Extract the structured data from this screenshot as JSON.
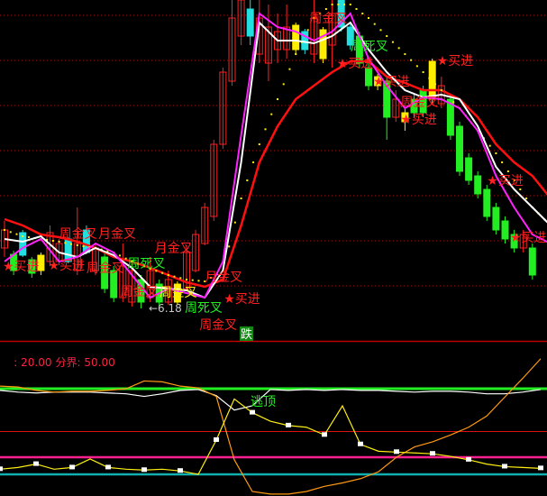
{
  "chart_data": [
    {
      "type": "candlestick",
      "title": "",
      "low_marker": {
        "text": "←6.18",
        "price": 6.18
      },
      "candle_colors": {
        "r": "#ff2020",
        "g": "#22ee22",
        "c": "#22e0e0",
        "y": "#ffee00"
      },
      "candles": [
        [
          6.85,
          7.15,
          6.75,
          7.05,
          "r"
        ],
        [
          6.78,
          6.82,
          6.55,
          6.6,
          "g"
        ],
        [
          7.02,
          7.05,
          6.75,
          6.77,
          "c"
        ],
        [
          6.72,
          6.75,
          6.52,
          6.57,
          "g"
        ],
        [
          6.6,
          6.8,
          6.55,
          6.77,
          "y"
        ],
        [
          6.7,
          7.1,
          6.65,
          7.02,
          "r"
        ],
        [
          6.7,
          6.95,
          6.66,
          6.9,
          "r"
        ],
        [
          6.95,
          6.97,
          6.68,
          6.7,
          "c"
        ],
        [
          6.6,
          7.3,
          6.55,
          6.9,
          "r"
        ],
        [
          7.05,
          7.1,
          6.78,
          6.8,
          "c"
        ],
        [
          6.6,
          6.9,
          6.55,
          6.85,
          "r"
        ],
        [
          6.75,
          6.8,
          6.35,
          6.4,
          "g"
        ],
        [
          6.6,
          6.65,
          6.25,
          6.3,
          "g"
        ],
        [
          6.3,
          6.9,
          6.25,
          6.65,
          "r"
        ],
        [
          6.25,
          6.7,
          6.2,
          6.6,
          "r"
        ],
        [
          6.5,
          6.55,
          6.18,
          6.25,
          "g"
        ],
        [
          6.3,
          6.75,
          6.25,
          6.6,
          "r"
        ],
        [
          6.45,
          6.5,
          6.2,
          6.25,
          "g"
        ],
        [
          6.25,
          6.6,
          6.22,
          6.5,
          "r"
        ],
        [
          6.25,
          6.48,
          6.22,
          6.45,
          "y"
        ],
        [
          6.4,
          6.88,
          6.38,
          6.8,
          "r"
        ],
        [
          6.6,
          7.05,
          6.58,
          7.0,
          "r"
        ],
        [
          6.9,
          7.35,
          6.88,
          7.3,
          "r"
        ],
        [
          7.2,
          8.05,
          7.15,
          8.0,
          "r"
        ],
        [
          8.0,
          8.85,
          7.95,
          8.8,
          "r"
        ],
        [
          8.7,
          9.6,
          8.65,
          9.4,
          "r"
        ],
        [
          9.2,
          9.6,
          9.1,
          9.6,
          "r"
        ],
        [
          9.5,
          9.6,
          9.1,
          9.2,
          "c"
        ],
        [
          9.0,
          9.6,
          8.9,
          9.4,
          "r"
        ],
        [
          8.9,
          9.55,
          8.7,
          9.3,
          "r"
        ],
        [
          9.05,
          9.45,
          8.9,
          9.25,
          "r"
        ],
        [
          9.05,
          9.55,
          8.95,
          9.3,
          "r"
        ],
        [
          9.05,
          9.35,
          9.0,
          9.32,
          "y"
        ],
        [
          9.25,
          9.28,
          9.0,
          9.05,
          "c"
        ],
        [
          9.0,
          9.6,
          8.9,
          9.4,
          "r"
        ],
        [
          8.95,
          9.3,
          8.9,
          9.27,
          "y"
        ],
        [
          9.1,
          9.6,
          8.85,
          9.45,
          "r"
        ],
        [
          9.6,
          9.6,
          9.25,
          9.3,
          "c"
        ],
        [
          9.3,
          9.35,
          9.05,
          9.1,
          "c"
        ],
        [
          9.2,
          9.25,
          8.85,
          8.9,
          "g"
        ],
        [
          8.85,
          8.9,
          8.6,
          8.65,
          "g"
        ],
        [
          8.65,
          8.78,
          8.6,
          8.75,
          "y"
        ],
        [
          8.7,
          8.75,
          8.05,
          8.3,
          "g"
        ],
        [
          8.3,
          8.6,
          8.25,
          8.5,
          "r"
        ],
        [
          8.25,
          8.4,
          8.15,
          8.35,
          "y"
        ],
        [
          8.5,
          8.55,
          8.3,
          8.35,
          "g"
        ],
        [
          8.6,
          8.65,
          8.3,
          8.35,
          "g"
        ],
        [
          8.5,
          8.95,
          8.45,
          8.92,
          "y"
        ],
        [
          8.45,
          8.75,
          8.4,
          8.65,
          "r"
        ],
        [
          8.5,
          8.55,
          8.05,
          8.1,
          "g"
        ],
        [
          8.2,
          8.25,
          7.65,
          7.7,
          "g"
        ],
        [
          7.85,
          7.9,
          7.55,
          7.6,
          "g"
        ],
        [
          7.65,
          7.7,
          7.4,
          7.45,
          "g"
        ],
        [
          7.5,
          7.55,
          7.15,
          7.2,
          "g"
        ],
        [
          7.3,
          7.35,
          7.0,
          7.05,
          "g"
        ],
        [
          7.15,
          7.2,
          6.9,
          6.95,
          "g"
        ],
        [
          7.0,
          7.05,
          6.8,
          6.85,
          "g"
        ],
        [
          6.85,
          7.05,
          6.8,
          7.0,
          "r"
        ],
        [
          6.85,
          6.9,
          6.5,
          6.55,
          "g"
        ]
      ],
      "lines": [
        {
          "color": "#ff1010",
          "style": "solid",
          "values": [
            7.17,
            7.1,
            7.0,
            6.97,
            6.92,
            6.85,
            6.75,
            6.7,
            6.63,
            6.55,
            6.47,
            6.42,
            6.5,
            7.1,
            7.8,
            8.2,
            8.5,
            8.65,
            8.8,
            8.92,
            8.92,
            8.75,
            8.68,
            8.6,
            8.6,
            8.5,
            8.3,
            8.0,
            7.8,
            7.65,
            7.4
          ]
        },
        {
          "color": "#ffee00",
          "style": "dotted",
          "values": [
            7.05,
            6.98,
            6.95,
            6.92,
            6.88,
            6.85,
            6.8,
            6.7,
            6.62,
            6.55,
            6.5,
            6.48,
            6.6,
            7.4,
            8.0,
            8.5,
            9.0,
            9.4,
            9.55,
            9.55,
            9.4,
            9.2,
            9.0,
            8.8,
            8.6,
            8.4,
            8.15,
            7.9,
            7.6,
            7.3,
            7.1
          ]
        },
        {
          "color": "#ffffff",
          "style": "solid",
          "values": [
            6.95,
            6.92,
            6.98,
            6.8,
            6.75,
            6.85,
            6.77,
            6.63,
            6.42,
            6.4,
            6.38,
            6.3,
            6.6,
            7.8,
            9.35,
            9.15,
            9.15,
            9.12,
            9.2,
            9.35,
            9.05,
            8.8,
            8.6,
            8.52,
            8.55,
            8.5,
            8.2,
            7.75,
            7.5,
            7.3,
            7.1
          ]
        },
        {
          "color": "#ff22ff",
          "style": "solid",
          "values": [
            6.7,
            6.85,
            6.95,
            6.7,
            6.75,
            6.9,
            6.8,
            6.55,
            6.3,
            6.4,
            6.35,
            6.3,
            6.7,
            8.1,
            9.45,
            9.3,
            9.25,
            9.15,
            9.25,
            9.45,
            8.95,
            8.65,
            8.4,
            8.52,
            8.5,
            8.4,
            8.15,
            7.65,
            7.3,
            7.0,
            6.9
          ]
        }
      ],
      "annotations": [
        {
          "text": "周金叉",
          "bar": 6,
          "price": 6.96,
          "color": "#ff2020"
        },
        {
          "text": "月金叉",
          "bar": 10,
          "price": 6.96,
          "color": "#ff2020"
        },
        {
          "text": "★买进",
          "bar": -0.5,
          "price": 6.6,
          "color": "#ff2020"
        },
        {
          "text": "★买进",
          "bar": 4.8,
          "price": 6.61,
          "color": "#ff2020"
        },
        {
          "text": "周金叉",
          "bar": 7.5,
          "price": 6.58,
          "color": "#ff2020"
        },
        {
          "text": "月金叉",
          "bar": 16.5,
          "price": 6.8,
          "color": "#ff2020"
        },
        {
          "text": "周死叉",
          "bar": 13.5,
          "price": 6.63,
          "color": "#22ee22"
        },
        {
          "text": "周金叉",
          "bar": 17,
          "price": 6.28,
          "color": "#ffee00"
        },
        {
          "text": "周金叉",
          "bar": 14.5,
          "price": 6.2,
          "color": "#ff2020"
        },
        {
          "text": "周死叉",
          "bar": 19.5,
          "price": 6.14,
          "color": "#22ee22"
        },
        {
          "text": "月金叉",
          "bar": 22,
          "price": 6.48,
          "color": "#ff2020"
        },
        {
          "text": "★买进",
          "bar": 22,
          "price": 6.24,
          "color": "#ff2020"
        },
        {
          "text": "周金叉",
          "bar": 22,
          "price": 6.04,
          "color": "#ff2020"
        },
        {
          "text": "周金叉",
          "bar": 33.5,
          "price": 9.35,
          "color": "#ff2020"
        },
        {
          "text": "周死叉",
          "bar": 38,
          "price": 9.04,
          "color": "#22ee22"
        },
        {
          "text": "★买进",
          "bar": 36.5,
          "price": 8.94,
          "color": "#ff2020"
        },
        {
          "text": "★买进",
          "bar": 40.5,
          "price": 8.65,
          "color": "#ff2020"
        },
        {
          "text": "★买进",
          "bar": 47.5,
          "price": 8.88,
          "color": "#ff2020"
        },
        {
          "text": "周金叉",
          "bar": 43.5,
          "price": 8.42,
          "color": "#ff2020"
        },
        {
          "text": "★买进",
          "bar": 43.5,
          "price": 8.26,
          "color": "#ff2020"
        },
        {
          "text": "★买进",
          "bar": 53,
          "price": 7.55,
          "color": "#ff2020"
        },
        {
          "text": "★买进",
          "bar": 58.5,
          "price": 6.92,
          "color": "#ff2020"
        }
      ],
      "signal_box": {
        "text": "跌",
        "color": "#118811"
      }
    },
    {
      "type": "line",
      "title": "",
      "params": [
        {
          "label": "",
          "value": ": 20.00"
        },
        {
          "label": "分界",
          "value": ": 50.00"
        }
      ],
      "ylim": [
        -25,
        155
      ],
      "reference_lines": [
        {
          "value": 100,
          "color": "#22ee22"
        },
        {
          "value": 50,
          "color": "#dd1010"
        },
        {
          "value": 20,
          "color": "#ff1f8f"
        },
        {
          "value": 0,
          "color": "#10b0b0"
        }
      ],
      "series": [
        {
          "color": "#ffffff",
          "values": [
            98,
            96,
            95,
            96,
            96,
            96,
            95,
            94,
            91,
            94,
            98,
            99,
            92,
            75,
            80,
            99,
            98,
            99,
            98,
            99,
            98,
            98,
            97,
            96,
            97,
            97,
            96,
            94,
            94,
            96,
            99
          ]
        },
        {
          "color": "#ff9a10",
          "values": [
            103,
            102,
            98,
            96,
            97,
            97,
            98,
            100,
            109,
            108,
            103,
            101,
            91,
            17,
            -20,
            -23,
            -23,
            -20,
            -14,
            -10,
            -5,
            3,
            20,
            32,
            38,
            46,
            55,
            68,
            90,
            112,
            135
          ]
        },
        {
          "color": "#ffee10",
          "markers": true,
          "values": [
            6,
            8,
            12,
            6,
            8,
            18,
            8,
            6,
            5,
            6,
            4,
            0,
            40,
            88,
            72,
            62,
            57,
            55,
            46,
            80,
            35,
            27,
            26,
            25,
            24,
            21,
            17,
            12,
            9,
            8,
            7
          ]
        }
      ],
      "annotations": [
        {
          "text": "逃顶",
          "x_index": 14,
          "value": 80,
          "color": "#22ee22"
        }
      ]
    }
  ]
}
